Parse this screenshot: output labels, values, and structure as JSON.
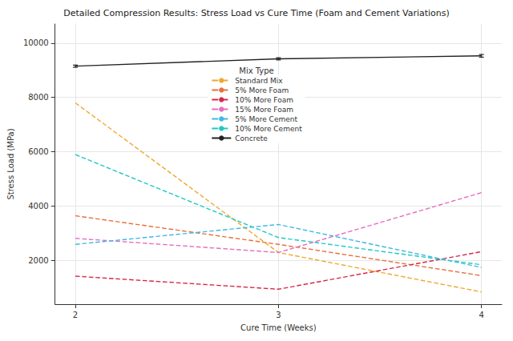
{
  "chart_data": {
    "type": "line",
    "title": "Detailed Compression Results: Stress Load vs Cure Time (Foam and Cement Variations)",
    "x_label": "Cure Time (Weeks)",
    "y_label": "Stress Load (MPa)",
    "legend_title": "Mix Type",
    "x": [
      2,
      3,
      4
    ],
    "xlim": [
      1.9,
      4.1
    ],
    "xticks": [
      2,
      3,
      4
    ],
    "ylim": [
      400,
      10700
    ],
    "yticks": [
      2000,
      4000,
      6000,
      8000,
      10000
    ],
    "grid": true,
    "legend": "upper center",
    "series": [
      {
        "name": "Standard Mix",
        "color": "#f0a830",
        "line_style": "dashed",
        "values": [
          7800,
          2300,
          850
        ]
      },
      {
        "name": "5% More Foam",
        "color": "#e8703a",
        "line_style": "dashed",
        "values": [
          3650,
          2600,
          1450
        ]
      },
      {
        "name": "10% More Foam",
        "color": "#d6294a",
        "line_style": "dashed",
        "values": [
          1430,
          950,
          2330
        ]
      },
      {
        "name": "15% More Foam",
        "color": "#e36fc0",
        "line_style": "dashed",
        "values": [
          2820,
          2300,
          4500
        ]
      },
      {
        "name": "5% More Cement",
        "color": "#3fb8e8",
        "line_style": "dashed",
        "values": [
          2600,
          3330,
          1750
        ]
      },
      {
        "name": "10% More Cement",
        "color": "#20c9c0",
        "line_style": "dashed",
        "values": [
          5900,
          2850,
          1850
        ]
      },
      {
        "name": "Concrete",
        "color": "#222222",
        "line_style": "solid",
        "values": [
          9150,
          9420,
          9530
        ],
        "errors": [
          40,
          40,
          50
        ]
      }
    ]
  }
}
